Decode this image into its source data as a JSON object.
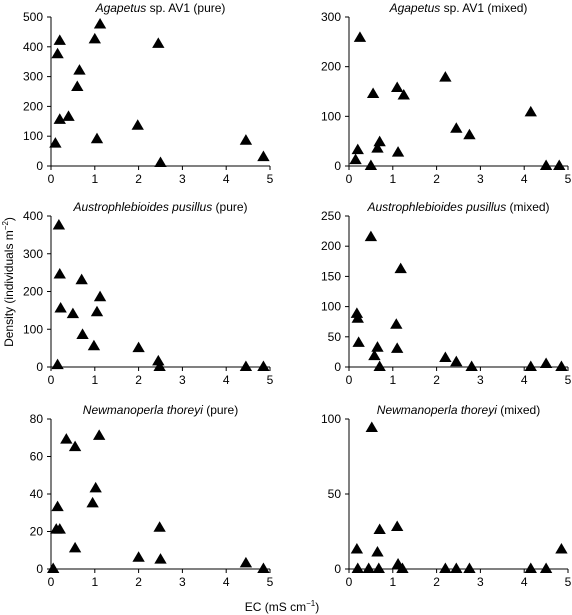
{
  "figure": {
    "xlabel_main": "EC (mS cm",
    "xlabel_sup": "−1",
    "xlabel_close": ")",
    "ylabel_main": "Density (individuals m",
    "ylabel_sup": "−2",
    "ylabel_close": ")"
  },
  "chart_data": [
    {
      "type": "scatter",
      "title_italic": "Agapetus",
      "title_rest": " sp. AV1 (pure)",
      "xlim": [
        0,
        5
      ],
      "ylim": [
        0,
        500
      ],
      "xticks": [
        0,
        1,
        2,
        3,
        4,
        5
      ],
      "yticks": [
        0,
        100,
        200,
        300,
        400,
        500
      ],
      "x": [
        0.1,
        0.15,
        0.2,
        0.2,
        0.4,
        0.6,
        0.65,
        1.0,
        1.05,
        1.12,
        1.98,
        2.45,
        2.5,
        4.45,
        4.85
      ],
      "y": [
        75,
        375,
        420,
        155,
        165,
        265,
        320,
        425,
        90,
        475,
        135,
        410,
        10,
        85,
        30
      ]
    },
    {
      "type": "scatter",
      "title_italic": "Agapetus",
      "title_rest": " sp. AV1 (mixed)",
      "xlim": [
        0,
        5
      ],
      "ylim": [
        0,
        300
      ],
      "xticks": [
        0,
        1,
        2,
        3,
        4,
        5
      ],
      "yticks": [
        0,
        100,
        200,
        300
      ],
      "x": [
        0.15,
        0.2,
        0.25,
        0.5,
        0.55,
        0.65,
        0.7,
        1.1,
        1.12,
        1.25,
        2.2,
        2.45,
        2.75,
        4.15,
        4.5,
        4.8
      ],
      "y": [
        12,
        32,
        258,
        0,
        145,
        35,
        48,
        157,
        27,
        142,
        178,
        75,
        62,
        108,
        0,
        0
      ]
    },
    {
      "type": "scatter",
      "title_italic": "Austrophlebioides pusillus",
      "title_rest": " (pure)",
      "xlim": [
        0,
        5
      ],
      "ylim": [
        0,
        400
      ],
      "xticks": [
        0,
        1,
        2,
        3,
        4,
        5
      ],
      "yticks": [
        0,
        100,
        200,
        300,
        400
      ],
      "x": [
        0.15,
        0.18,
        0.2,
        0.22,
        0.5,
        0.7,
        0.72,
        0.98,
        1.05,
        1.12,
        2.0,
        2.45,
        2.48,
        4.45,
        4.85
      ],
      "y": [
        5,
        375,
        245,
        155,
        140,
        230,
        85,
        55,
        145,
        185,
        50,
        15,
        0,
        0,
        0
      ]
    },
    {
      "type": "scatter",
      "title_italic": "Austrophlebioides pusillus",
      "title_rest": " (mixed)",
      "xlim": [
        0,
        5
      ],
      "ylim": [
        0,
        250
      ],
      "xticks": [
        0,
        1,
        2,
        3,
        4,
        5
      ],
      "yticks": [
        0,
        50,
        100,
        150,
        200,
        250
      ],
      "x": [
        0.18,
        0.2,
        0.22,
        0.5,
        0.58,
        0.65,
        0.7,
        1.08,
        1.1,
        1.18,
        2.2,
        2.45,
        2.8,
        4.15,
        4.5,
        4.85
      ],
      "y": [
        88,
        80,
        40,
        215,
        18,
        32,
        0,
        70,
        30,
        162,
        15,
        8,
        0,
        0,
        5,
        0
      ]
    },
    {
      "type": "scatter",
      "title_italic": "Newmanoperla thoreyi",
      "title_rest": " (pure)",
      "xlim": [
        0,
        5
      ],
      "ylim": [
        0,
        80
      ],
      "xticks": [
        0,
        1,
        2,
        3,
        4,
        5
      ],
      "yticks": [
        0,
        20,
        40,
        60,
        80
      ],
      "x": [
        0.05,
        0.12,
        0.15,
        0.2,
        0.35,
        0.55,
        0.55,
        0.95,
        1.02,
        1.1,
        2.0,
        2.48,
        2.5,
        4.45,
        4.85
      ],
      "y": [
        0,
        21,
        33,
        21,
        69,
        11,
        65,
        35,
        43,
        71,
        6,
        22,
        5,
        3,
        0
      ]
    },
    {
      "type": "scatter",
      "title_italic": "Newmanoperla thoreyi",
      "title_rest": " (mixed)",
      "xlim": [
        0,
        5
      ],
      "ylim": [
        0,
        100
      ],
      "xticks": [
        0,
        1,
        2,
        3,
        4,
        5
      ],
      "yticks": [
        0,
        50,
        100
      ],
      "x": [
        0.18,
        0.2,
        0.45,
        0.52,
        0.65,
        0.68,
        0.7,
        1.1,
        1.12,
        1.22,
        2.2,
        2.45,
        2.75,
        4.15,
        4.5,
        4.85
      ],
      "y": [
        13,
        0,
        0,
        94,
        11,
        0,
        26,
        28,
        3,
        0,
        0,
        0,
        0,
        0,
        0,
        13
      ]
    }
  ]
}
